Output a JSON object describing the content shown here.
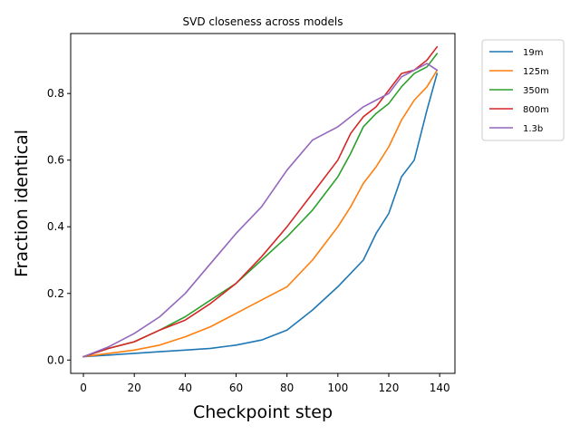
{
  "chart_data": {
    "type": "line",
    "title": "SVD closeness across models",
    "xlabel": "Checkpoint step",
    "ylabel": "Fraction identical",
    "xlim": [
      -5,
      146
    ],
    "ylim": [
      -0.04,
      0.98
    ],
    "xticks": [
      0,
      20,
      40,
      60,
      80,
      100,
      120,
      140
    ],
    "yticks": [
      0.0,
      0.2,
      0.4,
      0.6,
      0.8
    ],
    "xtick_labels": [
      "0",
      "20",
      "40",
      "60",
      "80",
      "100",
      "120",
      "140"
    ],
    "ytick_labels": [
      "0.0",
      "0.2",
      "0.4",
      "0.6",
      "0.8"
    ],
    "grid": false,
    "legend_position": "outside upper right",
    "x": [
      0,
      10,
      20,
      30,
      40,
      50,
      60,
      70,
      80,
      90,
      100,
      105,
      110,
      115,
      120,
      125,
      130,
      135,
      139
    ],
    "series": [
      {
        "name": "19m",
        "color": "#1f77b4",
        "values": [
          0.01,
          0.015,
          0.02,
          0.025,
          0.03,
          0.035,
          0.045,
          0.06,
          0.09,
          0.15,
          0.22,
          0.26,
          0.3,
          0.38,
          0.44,
          0.55,
          0.6,
          0.75,
          0.86
        ]
      },
      {
        "name": "125m",
        "color": "#ff7f0e",
        "values": [
          0.01,
          0.02,
          0.03,
          0.045,
          0.07,
          0.1,
          0.14,
          0.18,
          0.22,
          0.3,
          0.4,
          0.46,
          0.53,
          0.58,
          0.64,
          0.72,
          0.78,
          0.82,
          0.87
        ]
      },
      {
        "name": "350m",
        "color": "#2ca02c",
        "values": [
          0.01,
          0.035,
          0.055,
          0.09,
          0.13,
          0.18,
          0.23,
          0.3,
          0.37,
          0.45,
          0.55,
          0.62,
          0.7,
          0.74,
          0.77,
          0.82,
          0.86,
          0.88,
          0.92
        ]
      },
      {
        "name": "800m",
        "color": "#d62728",
        "values": [
          0.01,
          0.035,
          0.055,
          0.09,
          0.12,
          0.17,
          0.23,
          0.31,
          0.4,
          0.5,
          0.6,
          0.68,
          0.73,
          0.76,
          0.81,
          0.86,
          0.87,
          0.9,
          0.94
        ]
      },
      {
        "name": "1.3b",
        "color": "#9467bd",
        "values": [
          0.01,
          0.04,
          0.08,
          0.13,
          0.2,
          0.29,
          0.38,
          0.46,
          0.57,
          0.66,
          0.7,
          0.73,
          0.76,
          0.78,
          0.8,
          0.85,
          0.87,
          0.89,
          0.87
        ]
      }
    ]
  }
}
